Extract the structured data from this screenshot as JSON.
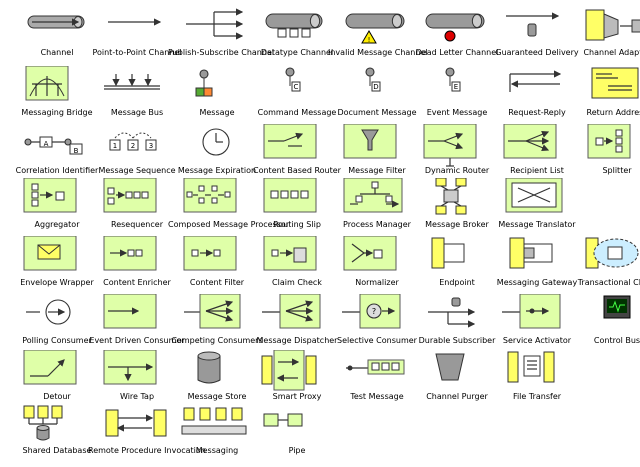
{
  "palette": {
    "box_fill": "#dfffa8",
    "box_stroke": "#5a5a5a",
    "ink": "#333333",
    "yellow": "#ffff66",
    "gray": "#9a9a9a",
    "red": "#dd0000"
  },
  "rows": [
    [
      {
        "label": "Channel",
        "icon": "channel-icon"
      },
      {
        "label": "Point-to-Point Channel",
        "icon": "point-to-point-channel-icon"
      },
      {
        "label": "Publish-Subscribe Channel",
        "icon": "publish-subscribe-channel-icon"
      },
      {
        "label": "Datatype Channel",
        "icon": "datatype-channel-icon"
      },
      {
        "label": "Invalid Message Channel",
        "icon": "invalid-message-channel-icon"
      },
      {
        "label": "Dead Letter Channel",
        "icon": "dead-letter-channel-icon"
      },
      {
        "label": "Guaranteed Delivery",
        "icon": "guaranteed-delivery-icon"
      },
      {
        "label": "Channel Adapter",
        "icon": "channel-adapter-icon"
      }
    ],
    [
      {
        "label": "Messaging Bridge",
        "icon": "messaging-bridge-icon"
      },
      {
        "label": "Message Bus",
        "icon": "message-bus-icon"
      },
      {
        "label": "Message",
        "icon": "message-icon"
      },
      {
        "label": "Command Message",
        "icon": "command-message-icon"
      },
      {
        "label": "Document Message",
        "icon": "document-message-icon"
      },
      {
        "label": "Event Message",
        "icon": "event-message-icon"
      },
      {
        "label": "Request-Reply",
        "icon": "request-reply-icon"
      },
      {
        "label": "Return Address",
        "icon": "return-address-icon"
      }
    ],
    [
      {
        "label": "Correlation Identifier",
        "icon": "correlation-identifier-icon"
      },
      {
        "label": "Message Sequence",
        "icon": "message-sequence-icon"
      },
      {
        "label": "Message Expiration",
        "icon": "message-expiration-icon"
      },
      {
        "label": "Content Based Router",
        "icon": "content-based-router-icon"
      },
      {
        "label": "Message Filter",
        "icon": "message-filter-icon"
      },
      {
        "label": "Dynamic Router",
        "icon": "dynamic-router-icon"
      },
      {
        "label": "Recipient List",
        "icon": "recipient-list-icon"
      },
      {
        "label": "Splitter",
        "icon": "splitter-icon"
      }
    ],
    [
      {
        "label": "Aggregator",
        "icon": "aggregator-icon"
      },
      {
        "label": "Resequencer",
        "icon": "resequencer-icon"
      },
      {
        "label": "Composed Message Processor",
        "icon": "composed-message-processor-icon"
      },
      {
        "label": "Routing Slip",
        "icon": "routing-slip-icon"
      },
      {
        "label": "Process Manager",
        "icon": "process-manager-icon"
      },
      {
        "label": "Message Broker",
        "icon": "message-broker-icon"
      },
      {
        "label": "Message Translator",
        "icon": "message-translator-icon"
      }
    ],
    [
      {
        "label": "Envelope Wrapper",
        "icon": "envelope-wrapper-icon"
      },
      {
        "label": "Content Enricher",
        "icon": "content-enricher-icon"
      },
      {
        "label": "Content Filter",
        "icon": "content-filter-icon"
      },
      {
        "label": "Claim Check",
        "icon": "claim-check-icon"
      },
      {
        "label": "Normalizer",
        "icon": "normalizer-icon"
      },
      {
        "label": "Endpoint",
        "icon": "endpoint-icon"
      },
      {
        "label": "Messaging Gateway",
        "icon": "messaging-gateway-icon"
      },
      {
        "label": "Transactional Client",
        "icon": "transactional-client-icon"
      }
    ],
    [
      {
        "label": "Polling Consumer",
        "icon": "polling-consumer-icon"
      },
      {
        "label": "Event Driven Consumer",
        "icon": "event-driven-consumer-icon"
      },
      {
        "label": "Competing Consumers",
        "icon": "competing-consumers-icon"
      },
      {
        "label": "Message Dispatcher",
        "icon": "message-dispatcher-icon"
      },
      {
        "label": "Selective Consumer",
        "icon": "selective-consumer-icon"
      },
      {
        "label": "Durable Subscriber",
        "icon": "durable-subscriber-icon"
      },
      {
        "label": "Service Activator",
        "icon": "service-activator-icon"
      },
      {
        "label": "Control Bus",
        "icon": "control-bus-icon"
      }
    ],
    [
      {
        "label": "Detour",
        "icon": "detour-icon"
      },
      {
        "label": "Wire Tap",
        "icon": "wire-tap-icon"
      },
      {
        "label": "Message Store",
        "icon": "message-store-icon"
      },
      {
        "label": "Smart Proxy",
        "icon": "smart-proxy-icon"
      },
      {
        "label": "Test Message",
        "icon": "test-message-icon"
      },
      {
        "label": "Channel Purger",
        "icon": "channel-purger-icon"
      },
      {
        "label": "File Transfer",
        "icon": "file-transfer-icon"
      }
    ],
    [
      {
        "label": "Shared Database",
        "icon": "shared-database-icon"
      },
      {
        "label": "Remote Procedure Invocation",
        "icon": "remote-procedure-invocation-icon"
      },
      {
        "label": "Messaging",
        "icon": "messaging-icon"
      },
      {
        "label": "Pipe",
        "icon": "pipe-icon"
      }
    ]
  ],
  "symbols": {
    "correlation_ids": [
      "A",
      "B"
    ],
    "sequence_ids": [
      "1",
      "2",
      "3"
    ],
    "command_tag": "C",
    "document_tag": "D",
    "event_tag": "E"
  }
}
